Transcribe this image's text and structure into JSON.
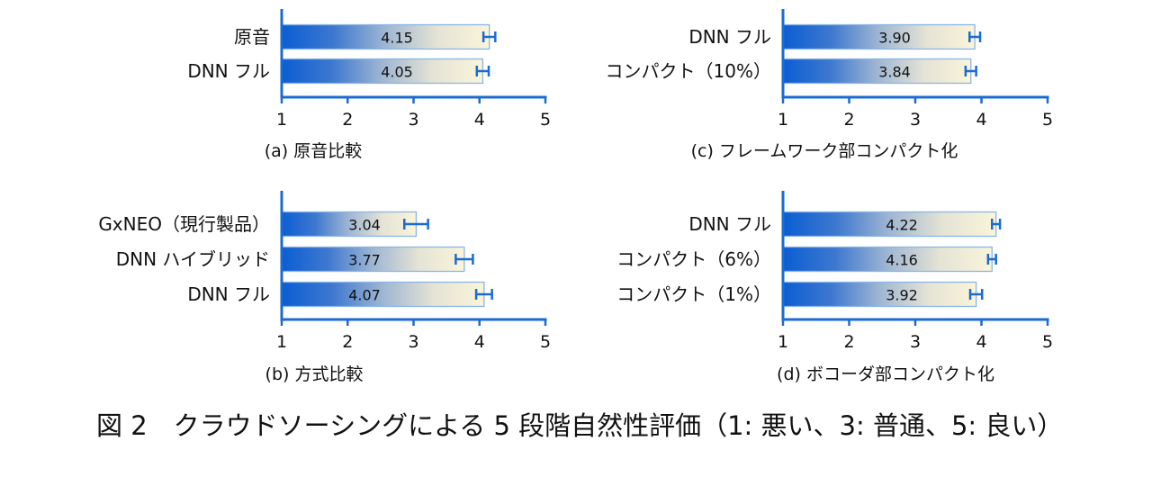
{
  "figure": {
    "caption": "図 2　クラウドソーシングによる 5 段階自然性評価（1: 悪い、3: 普通、5: 良い）"
  },
  "colors": {
    "bar_gradient": [
      "#0b5dd4",
      "#3d78cf",
      "#9fb6d2",
      "#e4e3d5",
      "#faf4d9"
    ],
    "bar_border": "#8ab6e6",
    "axis": "#1b6bd0",
    "error_bar": "#1b6bd0",
    "text": "#111111"
  },
  "chart_data": [
    {
      "type": "bar",
      "orientation": "horizontal",
      "panel_label": "(a) 原音比較",
      "categories": [
        "原音",
        "DNN フル"
      ],
      "values": [
        4.15,
        4.05
      ],
      "value_labels": [
        "4.15",
        "4.05"
      ],
      "errors": [
        0.09,
        0.09
      ],
      "xlim": [
        1,
        5
      ],
      "xticks": [
        1,
        2,
        3,
        4,
        5
      ],
      "grid": false,
      "legend": "none"
    },
    {
      "type": "bar",
      "orientation": "horizontal",
      "panel_label": "(b) 方式比較",
      "categories": [
        "GxNEO（現行製品）",
        "DNN ハイブリッド",
        "DNN フル"
      ],
      "values": [
        3.04,
        3.77,
        4.07
      ],
      "value_labels": [
        "3.04",
        "3.77",
        "4.07"
      ],
      "errors": [
        0.18,
        0.13,
        0.12
      ],
      "xlim": [
        1,
        5
      ],
      "xticks": [
        1,
        2,
        3,
        4,
        5
      ],
      "grid": false,
      "legend": "none"
    },
    {
      "type": "bar",
      "orientation": "horizontal",
      "panel_label": "(c) フレームワーク部コンパクト化",
      "categories": [
        "DNN フル",
        "コンパクト（10%）"
      ],
      "values": [
        3.9,
        3.84
      ],
      "value_labels": [
        "3.90",
        "3.84"
      ],
      "errors": [
        0.08,
        0.08
      ],
      "xlim": [
        1,
        5
      ],
      "xticks": [
        1,
        2,
        3,
        4,
        5
      ],
      "grid": false,
      "legend": "none"
    },
    {
      "type": "bar",
      "orientation": "horizontal",
      "panel_label": "(d) ボコーダ部コンパクト化",
      "categories": [
        "DNN フル",
        "コンパクト（6%）",
        "コンパクト（1%）"
      ],
      "values": [
        4.22,
        4.16,
        3.92
      ],
      "value_labels": [
        "4.22",
        "4.16",
        "3.92"
      ],
      "errors": [
        0.06,
        0.06,
        0.09
      ],
      "xlim": [
        1,
        5
      ],
      "xticks": [
        1,
        2,
        3,
        4,
        5
      ],
      "grid": false,
      "legend": "none"
    }
  ]
}
